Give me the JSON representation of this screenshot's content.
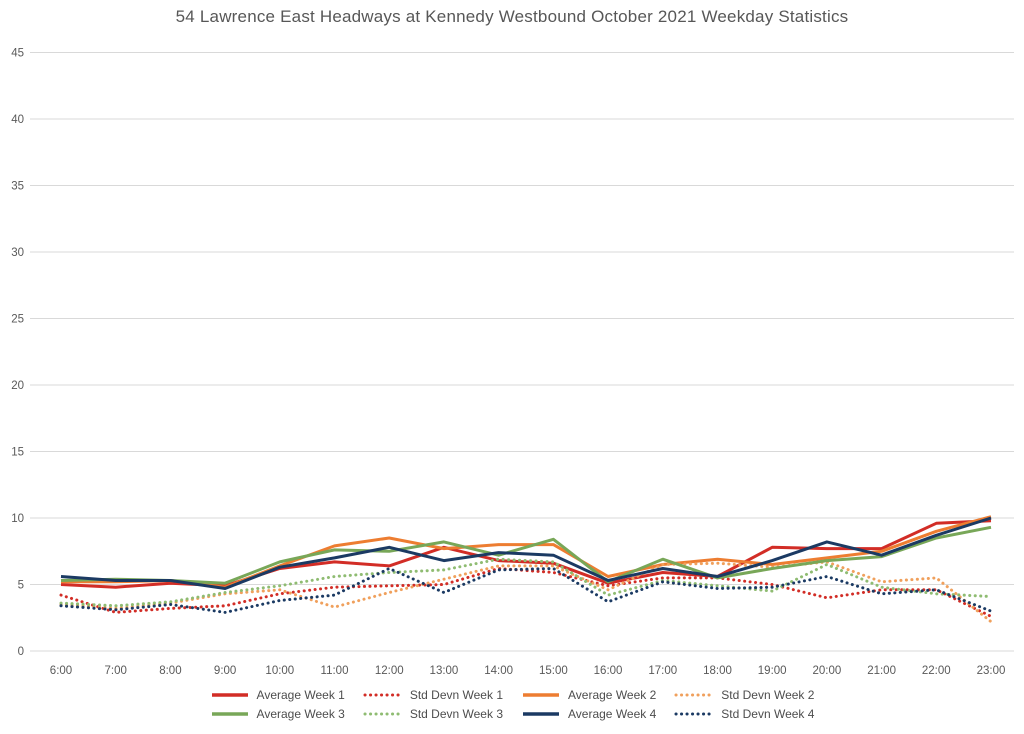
{
  "chart_data": {
    "type": "line",
    "title": "54 Lawrence East Headways at Kennedy Westbound October 2021 Weekday Statistics",
    "xlabel": "",
    "ylabel": "",
    "categories": [
      "6:00",
      "7:00",
      "8:00",
      "9:00",
      "10:00",
      "11:00",
      "12:00",
      "13:00",
      "14:00",
      "15:00",
      "16:00",
      "17:00",
      "18:00",
      "19:00",
      "20:00",
      "21:00",
      "22:00",
      "23:00"
    ],
    "ylim": [
      0,
      45
    ],
    "yticks": [
      0,
      5,
      10,
      15,
      20,
      25,
      30,
      35,
      40,
      45
    ],
    "grid": true,
    "legend_position": "bottom",
    "text_color": "#595959",
    "grid_color": "#d9d9d9",
    "series": [
      {
        "name": "Average Week 1",
        "color": "#d22d26",
        "style": "solid",
        "values": [
          5.0,
          4.8,
          5.1,
          4.9,
          6.2,
          6.7,
          6.4,
          7.8,
          6.8,
          6.6,
          5.1,
          5.9,
          5.6,
          7.8,
          7.7,
          7.7,
          9.6,
          9.8
        ]
      },
      {
        "name": "Std Devn Week 1",
        "color": "#d22d26",
        "style": "dotted",
        "values": [
          4.2,
          2.9,
          3.2,
          3.4,
          4.3,
          4.8,
          4.9,
          5.0,
          6.2,
          5.9,
          4.9,
          5.5,
          5.5,
          5.0,
          4.0,
          4.6,
          4.6,
          2.6
        ]
      },
      {
        "name": "Average Week 2",
        "color": "#ed7d31",
        "style": "solid",
        "values": [
          5.2,
          5.2,
          5.3,
          4.8,
          6.4,
          7.9,
          8.5,
          7.7,
          8.0,
          8.0,
          5.6,
          6.5,
          6.9,
          6.5,
          7.0,
          7.5,
          9.0,
          10.1
        ]
      },
      {
        "name": "Std Devn Week 2",
        "color": "#f0a05c",
        "style": "dotted",
        "values": [
          3.5,
          3.2,
          3.6,
          4.3,
          4.6,
          3.3,
          4.4,
          5.4,
          6.4,
          6.4,
          4.6,
          6.5,
          6.6,
          6.3,
          6.7,
          5.2,
          5.5,
          2.2
        ]
      },
      {
        "name": "Average Week 3",
        "color": "#78a758",
        "style": "solid",
        "values": [
          5.3,
          5.4,
          5.3,
          5.1,
          6.7,
          7.6,
          7.5,
          8.2,
          7.2,
          8.4,
          5.2,
          6.9,
          5.5,
          6.2,
          6.8,
          7.1,
          8.5,
          9.3
        ]
      },
      {
        "name": "Std Devn Week 3",
        "color": "#8fbc72",
        "style": "dotted",
        "values": [
          3.6,
          3.4,
          3.7,
          4.4,
          4.9,
          5.6,
          5.9,
          6.1,
          6.9,
          6.7,
          4.2,
          5.3,
          4.9,
          4.5,
          6.5,
          4.8,
          4.3,
          4.1
        ]
      },
      {
        "name": "Average Week 4",
        "color": "#1b3a63",
        "style": "solid",
        "values": [
          5.6,
          5.3,
          5.3,
          4.7,
          6.3,
          7.0,
          7.8,
          6.8,
          7.4,
          7.2,
          5.3,
          6.2,
          5.6,
          6.8,
          8.2,
          7.2,
          8.7,
          10.0
        ]
      },
      {
        "name": "Std Devn Week 4",
        "color": "#1b3a63",
        "style": "dotted",
        "values": [
          3.4,
          3.1,
          3.5,
          2.9,
          3.8,
          4.2,
          6.2,
          4.4,
          6.1,
          6.2,
          3.7,
          5.2,
          4.7,
          4.8,
          5.6,
          4.3,
          4.6,
          3.0
        ]
      }
    ],
    "legend_rows": [
      [
        "Average Week 1",
        "Std Devn Week 1",
        "Average Week 2",
        "Std Devn Week 2"
      ],
      [
        "Average Week 3",
        "Std Devn Week 3",
        "Average Week 4",
        "Std Devn Week 4"
      ]
    ]
  }
}
